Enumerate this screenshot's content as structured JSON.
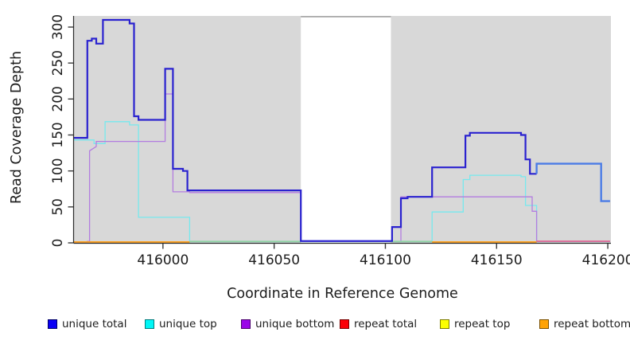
{
  "chart_data": {
    "type": "line",
    "title": "",
    "xlabel": "Coordinate in Reference Genome",
    "ylabel": "Read Coverage Depth",
    "x_ticks": [
      416000,
      416050,
      416100,
      416150,
      416200
    ],
    "y_ticks": [
      0,
      50,
      100,
      150,
      200,
      250,
      300
    ],
    "xlim": [
      415960,
      416201.4
    ],
    "ylim": [
      0,
      315.5
    ],
    "grid": "off",
    "panel_background_color": "#d8d8d8",
    "gap_region": {
      "from": 416062,
      "to": 416102.5,
      "fill": "#ffffff",
      "note": "white no-data region spanning plot height"
    },
    "series": [
      {
        "name": "unique total",
        "color": "#2a22cf",
        "width": 2.2,
        "points": [
          [
            415960,
            146
          ],
          [
            415966,
            146
          ],
          [
            415966,
            281
          ],
          [
            415968,
            281
          ],
          [
            415968,
            284
          ],
          [
            415970,
            284
          ],
          [
            415970,
            277
          ],
          [
            415973,
            277
          ],
          [
            415973,
            310
          ],
          [
            415985,
            310
          ],
          [
            415985,
            305
          ],
          [
            415987,
            305
          ],
          [
            415987,
            176
          ],
          [
            415989,
            176
          ],
          [
            415989,
            171
          ],
          [
            416001,
            171
          ],
          [
            416001,
            242
          ],
          [
            416004.5,
            242
          ],
          [
            416004.5,
            103
          ],
          [
            416009,
            103
          ],
          [
            416009,
            100
          ],
          [
            416011,
            100
          ],
          [
            416011,
            73
          ],
          [
            416062,
            73
          ],
          [
            416062,
            2.5
          ],
          [
            416103,
            2.5
          ],
          [
            416103,
            22
          ],
          [
            416107,
            22
          ],
          [
            416107,
            62
          ],
          [
            416110,
            62
          ],
          [
            416110,
            64
          ],
          [
            416121,
            64
          ],
          [
            416121,
            105
          ],
          [
            416136,
            105
          ],
          [
            416136,
            149
          ],
          [
            416138,
            149
          ],
          [
            416138,
            153
          ],
          [
            416161,
            153
          ],
          [
            416161,
            150
          ],
          [
            416163,
            150
          ],
          [
            416163,
            116
          ],
          [
            416165,
            116
          ],
          [
            416165,
            96
          ],
          [
            416168,
            96
          ]
        ]
      },
      {
        "name": "unique total (right segment)",
        "color": "#4b7ce6",
        "width": 2.4,
        "points": [
          [
            416168,
            96
          ],
          [
            416168,
            110
          ],
          [
            416197,
            110
          ],
          [
            416197,
            58
          ],
          [
            416201,
            58
          ]
        ]
      },
      {
        "name": "unique top",
        "color": "#76e9ee",
        "width": 1.3,
        "points": [
          [
            415960,
            143
          ],
          [
            415969,
            143
          ],
          [
            415969,
            138
          ],
          [
            415974,
            138
          ],
          [
            415974,
            168.5
          ],
          [
            415985,
            168.5
          ],
          [
            415985,
            164
          ],
          [
            415989,
            164
          ],
          [
            415989,
            35.5
          ],
          [
            416012,
            35.5
          ],
          [
            416012,
            1.7
          ],
          [
            416121,
            1.7
          ],
          [
            416121,
            43
          ],
          [
            416135,
            43
          ],
          [
            416135,
            88
          ],
          [
            416138,
            88
          ],
          [
            416138,
            94
          ],
          [
            416161,
            94
          ],
          [
            416161,
            92
          ],
          [
            416163,
            92
          ],
          [
            416163,
            52
          ],
          [
            416168,
            52
          ],
          [
            416168,
            1.7
          ],
          [
            416201,
            1.7
          ]
        ]
      },
      {
        "name": "unique bottom",
        "color": "#b37de0",
        "width": 1.3,
        "points": [
          [
            415960,
            0.9
          ],
          [
            415966,
            0.9
          ],
          [
            415966,
            2
          ],
          [
            415967,
            2
          ],
          [
            415967,
            128
          ],
          [
            415969,
            132
          ],
          [
            415970,
            134
          ],
          [
            415970,
            141
          ],
          [
            416001,
            141
          ],
          [
            416001,
            207
          ],
          [
            416004.5,
            207
          ],
          [
            416004.5,
            71
          ],
          [
            416012,
            71
          ],
          [
            416012,
            70
          ],
          [
            416062,
            70
          ],
          [
            416062,
            2
          ],
          [
            416107,
            2
          ],
          [
            416107,
            64
          ],
          [
            416166,
            64
          ],
          [
            416166,
            44
          ],
          [
            416168,
            44
          ],
          [
            416168,
            2
          ],
          [
            416201,
            2
          ]
        ]
      },
      {
        "name": "repeat total",
        "color": "#fb0007",
        "width": 1.3,
        "points": [
          [
            415960,
            0
          ],
          [
            416201,
            0
          ]
        ],
        "note": "flat at zero, hidden under other zero-lines"
      },
      {
        "name": "repeat top",
        "color": "#fcff00",
        "width": 1.3,
        "points": [
          [
            415960,
            0
          ],
          [
            416201,
            0
          ]
        ],
        "note": "flat at zero, hidden under other zero-lines"
      },
      {
        "name": "repeat bottom",
        "color": "#ff9e17",
        "width": 1.8,
        "points": [
          [
            415960,
            0
          ],
          [
            416201,
            0
          ]
        ],
        "note": "flat at zero, visible as orange baseline segments"
      }
    ],
    "baseline_segments": [
      {
        "from": 415960,
        "to": 416012,
        "value": 1.2,
        "color": "#ff9e17",
        "name": "orange-baseline-left"
      },
      {
        "from": 416012,
        "to": 416062,
        "value": 1.9,
        "color": "#8fd3a5",
        "name": "green-baseline-left"
      },
      {
        "from": 416102,
        "to": 416121,
        "value": 1.9,
        "color": "#8fd3a5",
        "name": "green-baseline-right"
      },
      {
        "from": 416121,
        "to": 416168,
        "value": 1.2,
        "color": "#ff9e17",
        "name": "orange-baseline-right"
      },
      {
        "from": 416168,
        "to": 416201,
        "value": 2.3,
        "color": "#df6f96",
        "name": "pink-baseline-right"
      }
    ],
    "legend": [
      {
        "label": "unique total",
        "fill": "#0b00f5",
        "border": "#00006a"
      },
      {
        "label": "unique top",
        "fill": "#00f6f6",
        "border": "#007d7d"
      },
      {
        "label": "unique bottom",
        "fill": "#9b07e8",
        "border": "#4c0070"
      },
      {
        "label": "repeat total",
        "fill": "#fb0007",
        "border": "#7a0000"
      },
      {
        "label": "repeat top",
        "fill": "#fcff00",
        "border": "#7d7d00"
      },
      {
        "label": "repeat bottom",
        "fill": "#ffa305",
        "border": "#7d5200"
      }
    ],
    "legend_position": "bottom"
  }
}
